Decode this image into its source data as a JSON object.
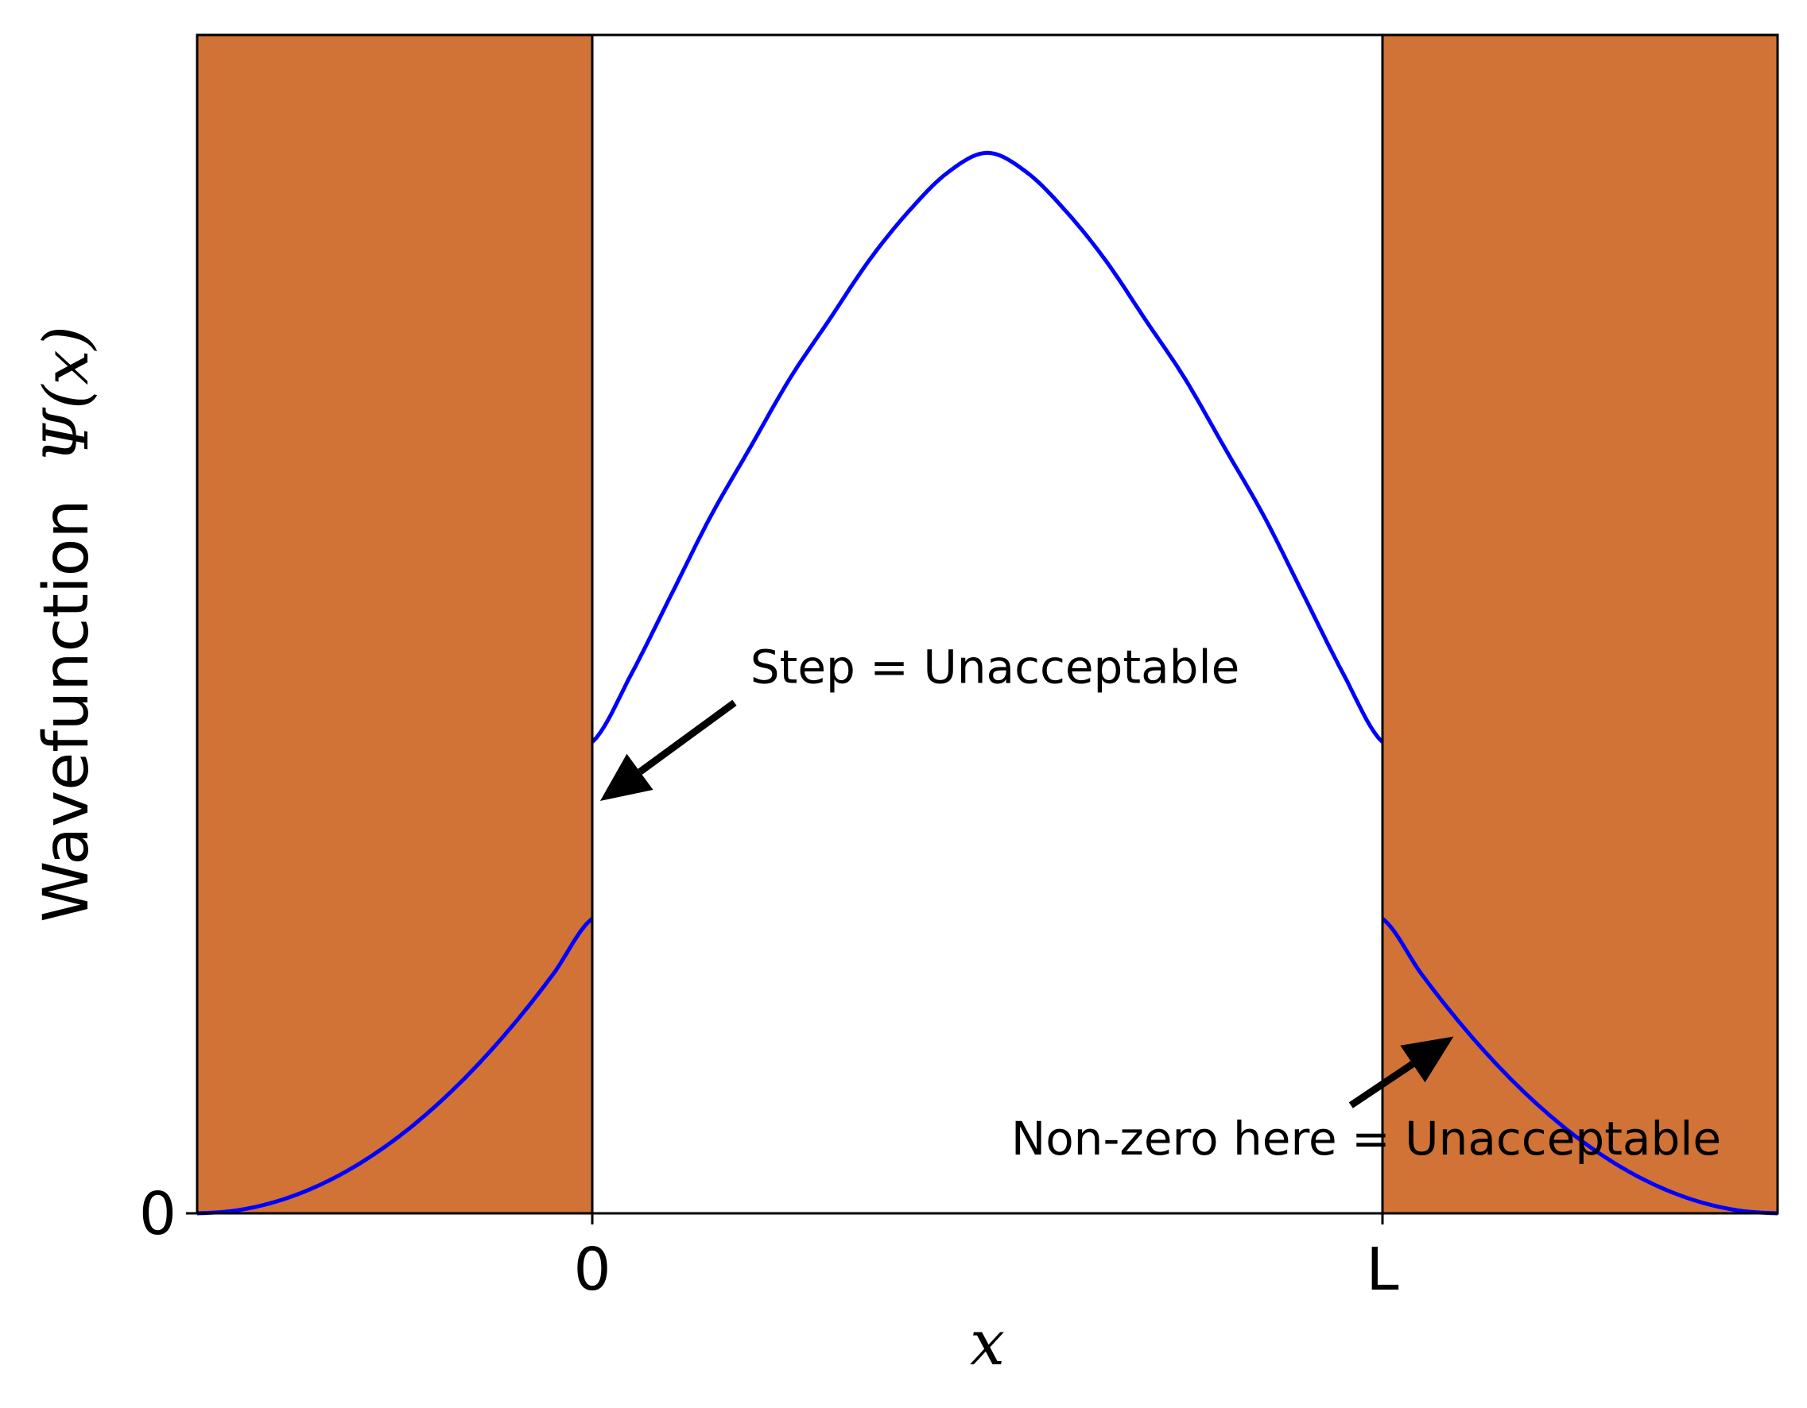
{
  "chart_data": {
    "type": "line",
    "xlabel": "x",
    "ylabel_prefix": "Wavefunction",
    "ylabel_math": "Ψ(x)",
    "x_ticks": [
      {
        "x": 0,
        "label": "0"
      },
      {
        "x": 1,
        "label": "L"
      }
    ],
    "y_ticks": [
      {
        "y": 0,
        "label": "0"
      }
    ],
    "xlim": [
      -0.5,
      1.5
    ],
    "ylim": [
      0,
      1.2
    ],
    "grid": false,
    "colors": {
      "curve": "#0000ff",
      "barrier": "#d17336",
      "axes": "#000000",
      "well": "#ffffff"
    },
    "regions": [
      {
        "name": "left barrier",
        "x_range": [
          -0.5,
          0
        ]
      },
      {
        "name": "well",
        "x_range": [
          0,
          1
        ]
      },
      {
        "name": "right barrier",
        "x_range": [
          1,
          1.5
        ]
      }
    ],
    "series": [
      {
        "id": "inside",
        "x_range": [
          0,
          1
        ],
        "x": [
          0,
          0.05,
          0.1,
          0.15,
          0.2,
          0.25,
          0.3,
          0.35,
          0.4,
          0.45,
          0.5,
          0.55,
          0.6,
          0.65,
          0.7,
          0.75,
          0.8,
          0.85,
          0.9,
          0.95,
          1
        ],
        "values": [
          0.48,
          0.55,
          0.63,
          0.71,
          0.78,
          0.85,
          0.91,
          0.97,
          1.02,
          1.06,
          1.08,
          1.06,
          1.02,
          0.97,
          0.91,
          0.85,
          0.78,
          0.71,
          0.63,
          0.55,
          0.48
        ]
      },
      {
        "id": "left-tail",
        "x_range": [
          -0.5,
          0
        ],
        "x": [
          -0.5,
          -0.45,
          -0.4,
          -0.35,
          -0.3,
          -0.25,
          -0.2,
          -0.15,
          -0.1,
          -0.05,
          0
        ],
        "values": [
          0.0,
          0.003,
          0.012,
          0.027,
          0.048,
          0.075,
          0.108,
          0.147,
          0.192,
          0.243,
          0.3
        ]
      },
      {
        "id": "right-tail",
        "x_range": [
          1,
          1.5
        ],
        "x": [
          1,
          1.05,
          1.1,
          1.15,
          1.2,
          1.25,
          1.3,
          1.35,
          1.4,
          1.45,
          1.5
        ],
        "values": [
          0.3,
          0.243,
          0.192,
          0.147,
          0.108,
          0.075,
          0.048,
          0.027,
          0.012,
          0.003,
          0.0
        ]
      }
    ],
    "annotations": [
      {
        "id": "step",
        "text": "Step = Unacceptable",
        "text_anchor_xy": [
          0.2,
          0.54
        ],
        "arrow_tail": [
          0.18,
          0.52
        ],
        "arrow_head": [
          0.01,
          0.42
        ]
      },
      {
        "id": "nonzero",
        "text": "Non-zero here = Unacceptable",
        "text_anchor_xy": [
          0.53,
          0.06
        ],
        "arrow_tail": [
          0.96,
          0.11
        ],
        "arrow_head": [
          1.09,
          0.18
        ]
      }
    ]
  }
}
